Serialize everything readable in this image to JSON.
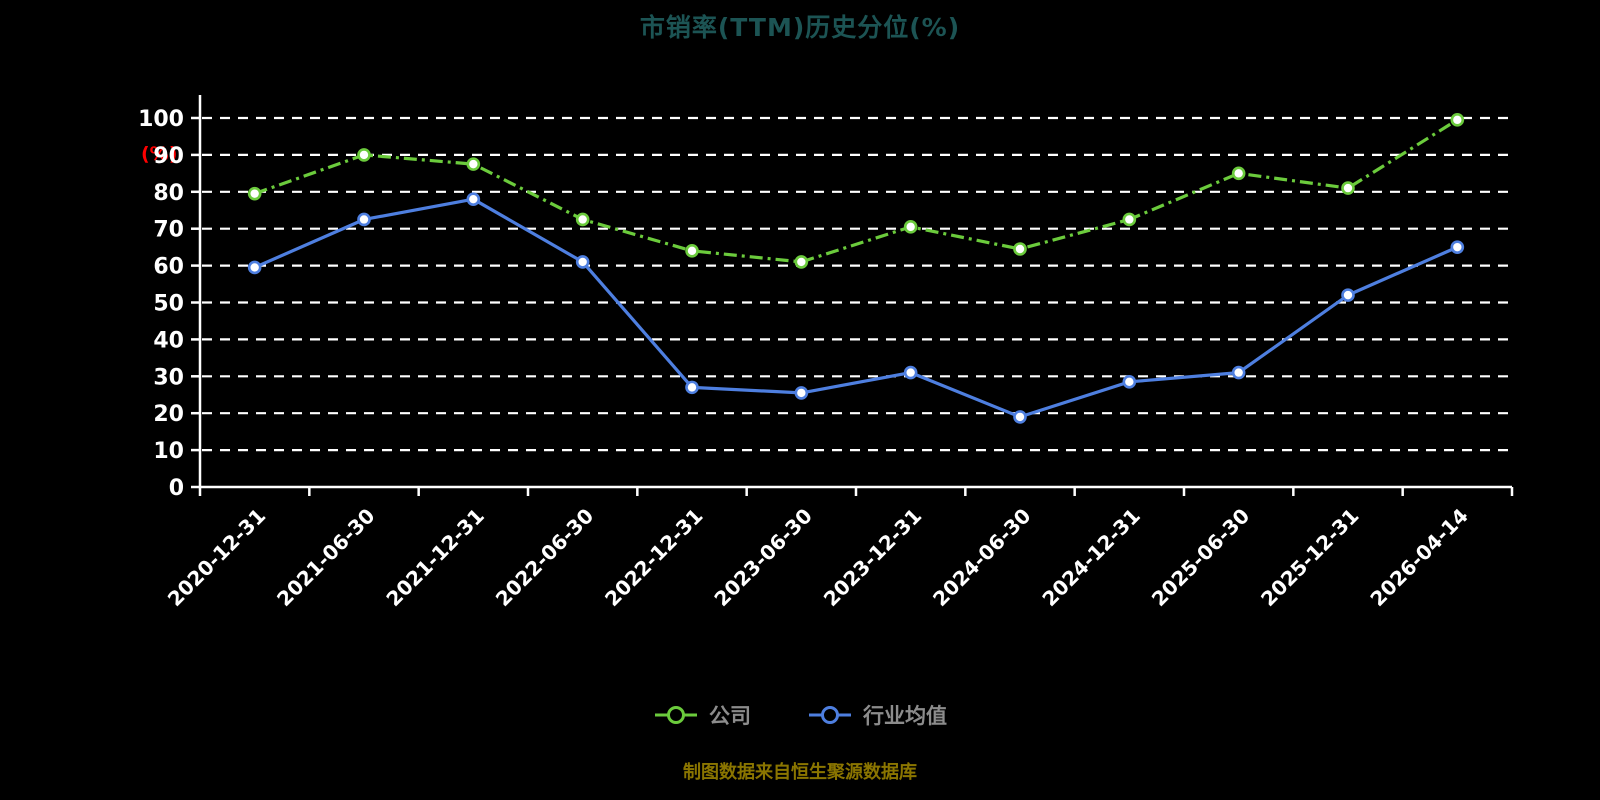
{
  "title": "市销率(TTM)历史分位(%)",
  "y_axis_label": "(%)",
  "footer": "制图数据来自恒生聚源数据库",
  "colors": {
    "background": "#000000",
    "axis": "#FFFFFF",
    "grid": "#FFFFFF",
    "title": "#1C5454",
    "y_axis_label": "#FF0000",
    "legend_text": "#8C8C8C",
    "footer_text": "#8A7500",
    "series_company": "#6BCB3C",
    "series_industry": "#4E7FE0"
  },
  "chart_data": {
    "type": "line",
    "title": "市销率(TTM)历史分位(%)",
    "ylabel": "(%)",
    "ylim": [
      0,
      100
    ],
    "yticks": [
      0,
      10,
      20,
      30,
      40,
      50,
      60,
      70,
      80,
      90,
      100
    ],
    "grid": "dashed-horizontal",
    "legend_position": "bottom-center",
    "categories": [
      "2020-12-31",
      "2021-06-30",
      "2021-12-31",
      "2022-06-30",
      "2022-12-31",
      "2023-06-30",
      "2023-12-31",
      "2024-06-30",
      "2024-12-31",
      "2025-06-30",
      "2025-12-31",
      "2026-04-14"
    ],
    "series": [
      {
        "name": "公司",
        "color": "#6BCB3C",
        "style": "dashdot",
        "marker": "circle-white-fill",
        "values": [
          79.5,
          90,
          87.5,
          72.5,
          64,
          61,
          70.5,
          64.5,
          72.5,
          85,
          81,
          99.5
        ]
      },
      {
        "name": "行业均值",
        "color": "#4E7FE0",
        "style": "solid",
        "marker": "circle-white-fill",
        "values": [
          59.5,
          72.5,
          78,
          61,
          27,
          25.5,
          31,
          19,
          28.5,
          31,
          52,
          65
        ]
      }
    ]
  }
}
